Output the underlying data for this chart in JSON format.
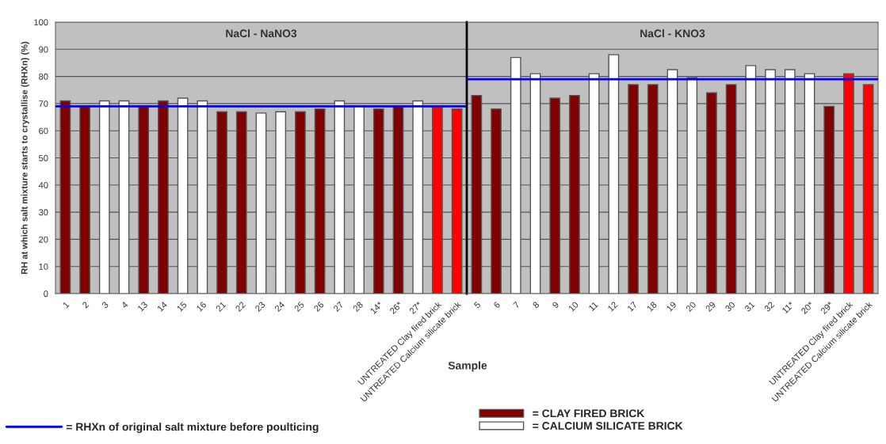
{
  "chart_data": [
    {
      "type": "bar",
      "title": "NaCl - NaNO3",
      "xlabel": "Sample",
      "ylabel": "RH at which salt mixture starts to crystallise (RHXn) (%)",
      "categories": [
        "1",
        "2",
        "3",
        "4",
        "13",
        "14",
        "15",
        "16",
        "21",
        "22",
        "23",
        "24",
        "25",
        "26",
        "27",
        "28",
        "14*",
        "26*",
        "27*",
        "UNTREATED Clay fired brick",
        "UNTREATED Calcium silicate brick"
      ],
      "series": [
        {
          "name": "= CLAY FIRED BRICK",
          "color": "#800000",
          "values": [
            71,
            69,
            null,
            null,
            69,
            71,
            null,
            null,
            67,
            67,
            null,
            null,
            67,
            68,
            null,
            null,
            68,
            69,
            null,
            null,
            null
          ]
        },
        {
          "name": "= CALCIUM SILICATE BRICK",
          "color": "#ffffff",
          "values": [
            null,
            null,
            71,
            71,
            null,
            null,
            72,
            71,
            null,
            null,
            66.5,
            67,
            null,
            null,
            71,
            69,
            null,
            null,
            71,
            null,
            null
          ]
        },
        {
          "color": "#ff0000",
          "values": [
            null,
            null,
            null,
            null,
            null,
            null,
            null,
            null,
            null,
            null,
            null,
            null,
            null,
            null,
            null,
            null,
            null,
            null,
            null,
            69,
            68
          ]
        }
      ],
      "ylim": [
        0,
        100
      ],
      "yticks": [
        0,
        10,
        20,
        30,
        40,
        50,
        60,
        70,
        80,
        90,
        100
      ],
      "grid": "y",
      "ref_lines": [
        {
          "axis": "y",
          "value": 69,
          "label": "= RHXn of original salt mixture before poulticing",
          "color": "#0000ff"
        }
      ],
      "legend": "bottom"
    },
    {
      "type": "bar",
      "title": "NaCl - KNO3",
      "categories": [
        "5",
        "6",
        "7",
        "8",
        "9",
        "10",
        "11",
        "12",
        "17",
        "18",
        "19",
        "20",
        "29",
        "30",
        "31",
        "32",
        "11*",
        "20*",
        "29*",
        "UNTREATED Clay fired brick",
        "UNTREATED Calcium silicate brick"
      ],
      "series": [
        {
          "color": "#800000",
          "values": [
            73,
            68,
            null,
            null,
            72,
            73,
            null,
            null,
            77,
            77,
            null,
            null,
            74,
            77,
            null,
            null,
            null,
            null,
            69,
            null,
            null
          ]
        },
        {
          "color": "#ffffff",
          "values": [
            null,
            null,
            87,
            81,
            null,
            null,
            81,
            88,
            null,
            null,
            82.5,
            79.5,
            null,
            null,
            84,
            82.5,
            82.5,
            81,
            null,
            null,
            null
          ]
        },
        {
          "color": "#ff0000",
          "values": [
            null,
            null,
            null,
            null,
            null,
            null,
            null,
            null,
            null,
            null,
            null,
            null,
            null,
            null,
            null,
            null,
            null,
            null,
            null,
            81,
            77
          ]
        }
      ],
      "ylim": [
        0,
        100
      ],
      "yticks": [
        0,
        10,
        20,
        30,
        40,
        50,
        60,
        70,
        80,
        90,
        100
      ],
      "grid": "y",
      "tick_labels": "x",
      "ref_lines": [
        {
          "axis": "y",
          "value": 79,
          "color": "#0000ff"
        }
      ]
    }
  ]
}
